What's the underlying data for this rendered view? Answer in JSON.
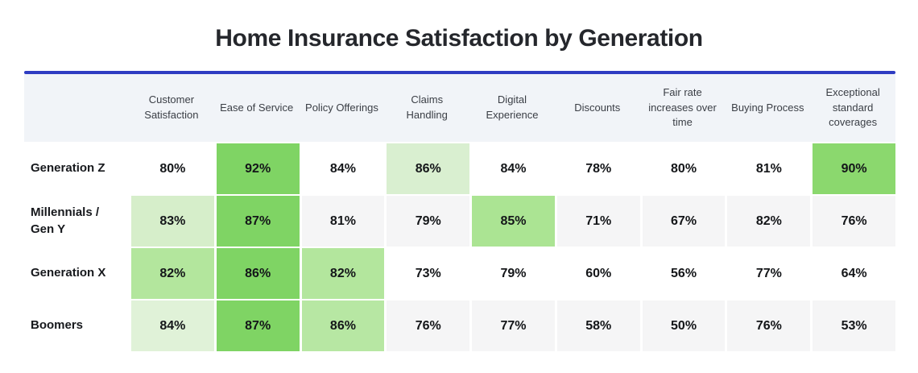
{
  "title": "Home Insurance Satisfaction by Generation",
  "colors": {
    "accent_line": "#2e3cc2",
    "header_bg": "#f1f4f8",
    "stripe_bg": "#f5f5f6",
    "plain_bg": "#ffffff",
    "green_strong": "#7fd464",
    "green_strong_alt": "#8bd86e",
    "green_medium": "#abe493",
    "green_medium_alt": "#b3e69d",
    "green_light": "#d6eeca",
    "green_xlight": "#e0f2d8"
  },
  "chart_data": {
    "type": "heatmap",
    "title": "Home Insurance Satisfaction by Generation",
    "unit": "%",
    "columns": [
      "Customer Satisfaction",
      "Ease of Service",
      "Policy Offerings",
      "Claims Handling",
      "Digital Experience",
      "Discounts",
      "Fair rate increases over time",
      "Buying Process",
      "Exceptional standard coverages"
    ],
    "rows": [
      "Generation Z",
      "Millennials / Gen Y",
      "Generation X",
      "Boomers"
    ],
    "values": [
      [
        80,
        92,
        84,
        86,
        84,
        78,
        80,
        81,
        90
      ],
      [
        83,
        87,
        81,
        79,
        85,
        71,
        67,
        82,
        76
      ],
      [
        82,
        86,
        82,
        73,
        79,
        60,
        56,
        77,
        64
      ],
      [
        84,
        87,
        86,
        76,
        77,
        58,
        50,
        76,
        53
      ]
    ],
    "row_backgrounds": [
      "#ffffff",
      "#f5f5f6",
      "#ffffff",
      "#f5f5f6"
    ],
    "highlight_colors": [
      [
        null,
        "#7fd464",
        null,
        "#d9efd0",
        null,
        null,
        null,
        null,
        "#8bd86e"
      ],
      [
        "#d6eeca",
        "#7fd464",
        null,
        null,
        "#abe493",
        null,
        null,
        null,
        null
      ],
      [
        "#b3e69d",
        "#7fd464",
        "#b3e69d",
        null,
        null,
        null,
        null,
        null,
        null
      ],
      [
        "#e0f2d8",
        "#7fd464",
        "#b7e7a3",
        null,
        null,
        null,
        null,
        null,
        null
      ]
    ],
    "legend_position": "none",
    "grid": false
  }
}
